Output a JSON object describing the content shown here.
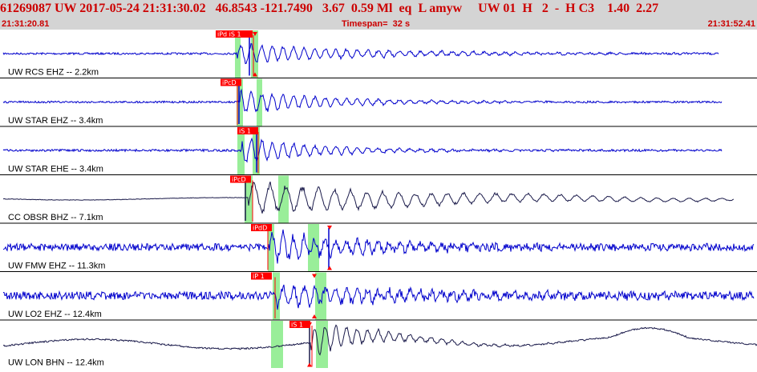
{
  "header": {
    "title": "61269087 UW 2017-05-24 21:31:30.02   46.8543 -121.7490   3.67  0.59 Ml  eq  L amyw     UW 01  H   2  -  H C3    1.40  2.27",
    "start_time": "21:31:20.81",
    "timespan": "Timespan=  32 s",
    "end_time": "21:31:52.41"
  },
  "colors": {
    "header_bg": "#d4d4d4",
    "header_text": "#cc0000",
    "trace_blue": "#0000cc",
    "trace_dark": "#1a1a4a",
    "pick_green": "#99ee99",
    "pick_red": "#ff0000",
    "label_text": "#000000"
  },
  "channels": [
    {
      "label": "UW RCS EHZ -- 2.2km",
      "picks": [
        "iPd iS 1"
      ],
      "color": "blue"
    },
    {
      "label": "UW STAR EHZ -- 3.4km",
      "picks": [
        "iPcD"
      ],
      "color": "blue"
    },
    {
      "label": "UW STAR EHE -- 3.4km",
      "picks": [
        "iS 1"
      ],
      "color": "blue"
    },
    {
      "label": "CC OBSR BHZ -- 7.1km",
      "picks": [
        "iPcD"
      ],
      "color": "dark"
    },
    {
      "label": "UW FMW EHZ -- 11.3km",
      "picks": [
        "iPdD"
      ],
      "color": "blue"
    },
    {
      "label": "UW LO2 EHZ -- 12.4km",
      "picks": [
        "iP 1"
      ],
      "color": "blue"
    },
    {
      "label": "UW LON BHN -- 12.4km",
      "picks": [
        "iS 1"
      ],
      "color": "dark"
    }
  ]
}
